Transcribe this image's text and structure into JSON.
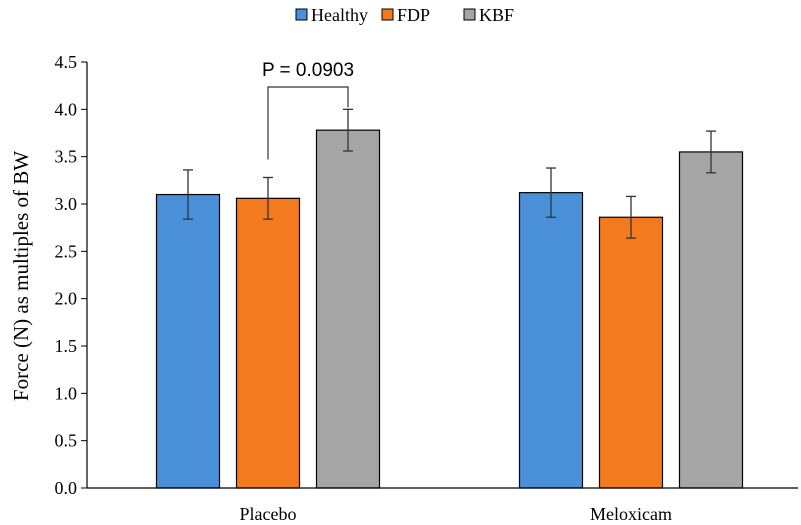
{
  "chart_data": {
    "type": "bar",
    "categories": [
      "Placebo",
      "Meloxicam"
    ],
    "series": [
      {
        "name": "Healthy",
        "color": "#4a90d9",
        "values": [
          3.1,
          3.12
        ],
        "errors": [
          0.26,
          0.26
        ]
      },
      {
        "name": "FDP",
        "color": "#f47a20",
        "values": [
          3.06,
          2.86
        ],
        "errors": [
          0.22,
          0.22
        ]
      },
      {
        "name": "KBF",
        "color": "#a5a5a5",
        "values": [
          3.78,
          3.55
        ],
        "errors": [
          0.22,
          0.22
        ]
      }
    ],
    "title": "",
    "xlabel": "",
    "ylabel": "Force (N) as multiples of BW",
    "ylim": [
      0,
      4.5
    ],
    "yticks": [
      "0.0",
      "0.5",
      "1.0",
      "1.5",
      "2.0",
      "2.5",
      "3.0",
      "3.5",
      "4.0",
      "4.5"
    ],
    "ytick_values": [
      0,
      0.5,
      1.0,
      1.5,
      2.0,
      2.5,
      3.0,
      3.5,
      4.0,
      4.5
    ],
    "grid": false,
    "legend_position": "top-center",
    "annotations": [
      {
        "text": "P = 0.0903",
        "category": "Placebo",
        "from_series": "FDP",
        "to_series": "KBF"
      }
    ]
  }
}
